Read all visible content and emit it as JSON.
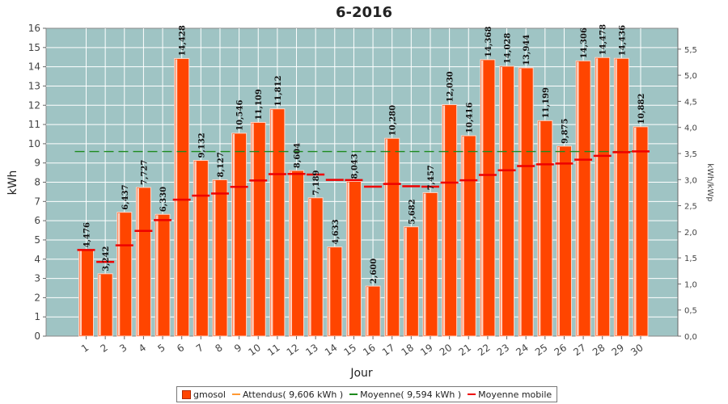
{
  "chart_data": {
    "type": "bar",
    "title": "6-2016",
    "xlabel": "Jour",
    "ylabel": "kWh",
    "y2label": "kWh/kWp",
    "ylim": [
      0,
      16
    ],
    "y2lim": [
      0,
      5.9
    ],
    "categories": [
      "1",
      "2",
      "3",
      "4",
      "5",
      "6",
      "7",
      "8",
      "9",
      "10",
      "11",
      "12",
      "13",
      "14",
      "15",
      "16",
      "17",
      "18",
      "19",
      "20",
      "21",
      "22",
      "23",
      "24",
      "25",
      "26",
      "27",
      "28",
      "29",
      "30"
    ],
    "y_ticks": [
      "0",
      "1",
      "2",
      "3",
      "4",
      "5",
      "6",
      "7",
      "8",
      "9",
      "10",
      "11",
      "12",
      "13",
      "14",
      "15",
      "16"
    ],
    "y2_ticks": [
      "0,0",
      "0,5",
      "1,0",
      "1,5",
      "2,0",
      "2,5",
      "3,0",
      "3,5",
      "4,0",
      "4,5",
      "5,0",
      "5,5"
    ],
    "series": [
      {
        "name": "gmosol",
        "color": "#ff4500",
        "values": [
          4.476,
          3.242,
          6.437,
          7.727,
          6.33,
          14.428,
          9.132,
          8.127,
          10.546,
          11.109,
          11.812,
          8.604,
          7.189,
          4.633,
          8.043,
          2.6,
          10.28,
          5.682,
          7.457,
          12.03,
          10.416,
          14.368,
          14.028,
          13.944,
          11.199,
          9.875,
          14.306,
          14.478,
          14.436,
          10.882
        ],
        "labels": [
          "4,476",
          "3,242",
          "6,437",
          "7,727",
          "6,330",
          "14,428",
          "9,132",
          "8,127",
          "10,546",
          "11,109",
          "11,812",
          "8,604",
          "7,189",
          "4,633",
          "8,043",
          "2,600",
          "10,280",
          "5,682",
          "7,457",
          "12,030",
          "10,416",
          "14,368",
          "14,028",
          "13,944",
          "11,199",
          "9,875",
          "14,306",
          "14,478",
          "14,436",
          "10,882"
        ]
      },
      {
        "name": "Attendus( 9,606 kWh )",
        "color": "#ff9933",
        "value": 9.606
      },
      {
        "name": "Moyenne( 9,594 kWh )",
        "color": "#1e8a1e",
        "value": 9.594
      },
      {
        "name": "Moyenne mobile",
        "color": "#ee0000",
        "values": [
          4.48,
          3.86,
          4.72,
          5.47,
          6.03,
          7.09,
          7.3,
          7.41,
          7.76,
          8.09,
          8.42,
          8.43,
          8.4,
          8.12,
          8.11,
          7.77,
          7.91,
          7.79,
          7.77,
          7.98,
          8.1,
          8.38,
          8.62,
          8.84,
          8.93,
          8.97,
          9.17,
          9.37,
          9.56,
          9.6
        ]
      }
    ],
    "grid": true,
    "legend_position": "bottom"
  }
}
